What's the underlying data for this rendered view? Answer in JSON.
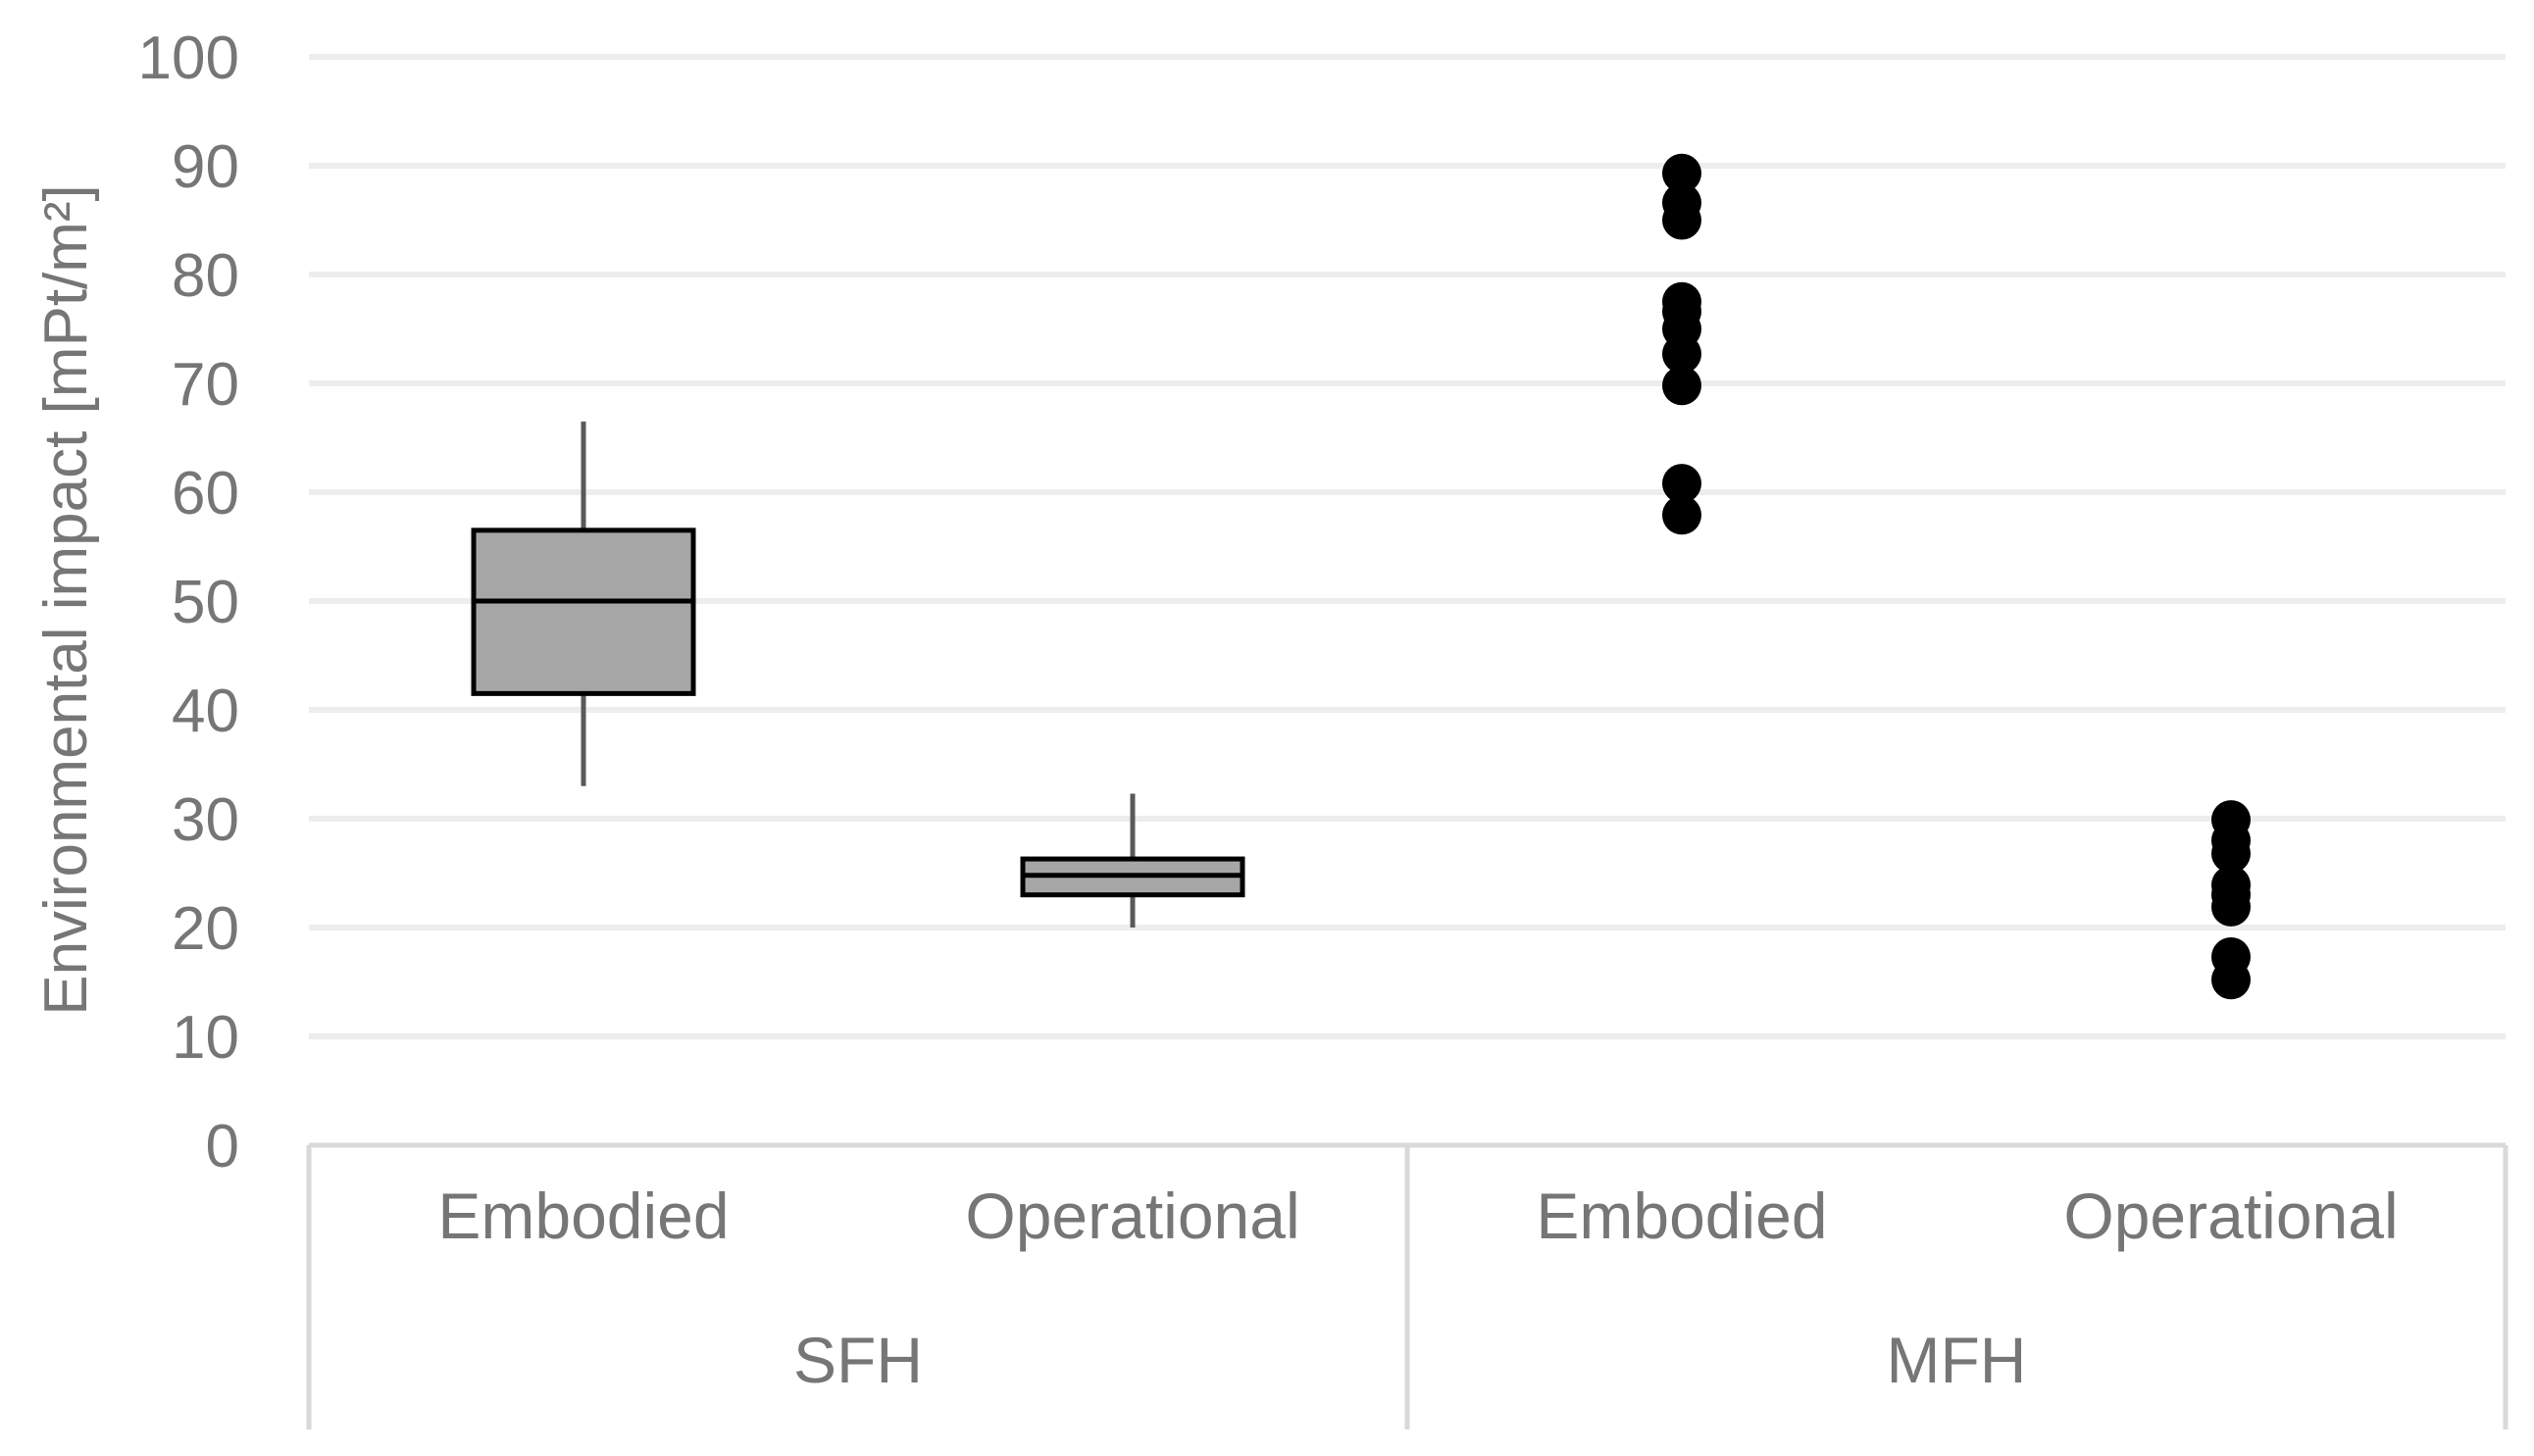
{
  "chart_data": {
    "type": "box",
    "title": "",
    "xlabel": "",
    "ylabel": "Environmental impact [mPt/m²]",
    "ylim": [
      0,
      100
    ],
    "yticks": [
      0,
      10,
      20,
      30,
      40,
      50,
      60,
      70,
      80,
      90,
      100
    ],
    "grid": true,
    "groups": [
      {
        "label": "SFH",
        "categories": [
          "Embodied",
          "Operational"
        ]
      },
      {
        "label": "MFH",
        "categories": [
          "Embodied",
          "Operational"
        ]
      }
    ],
    "boxes": [
      {
        "group": "SFH",
        "category": "Embodied",
        "min": 33,
        "q1": 41.5,
        "median": 50,
        "q3": 56.5,
        "max": 66.5
      },
      {
        "group": "SFH",
        "category": "Operational",
        "min": 20,
        "q1": 23,
        "median": 24.8,
        "q3": 26.3,
        "max": 32.3
      }
    ],
    "points": [
      {
        "group": "MFH",
        "category": "Embodied",
        "values": [
          89.3,
          86.6,
          85,
          77.5,
          76.6,
          75,
          72.7,
          69.8,
          60.8,
          57.9
        ]
      },
      {
        "group": "MFH",
        "category": "Operational",
        "values": [
          29.9,
          28,
          26.8,
          23.9,
          23,
          21.9,
          17.3,
          15.2
        ]
      }
    ]
  }
}
